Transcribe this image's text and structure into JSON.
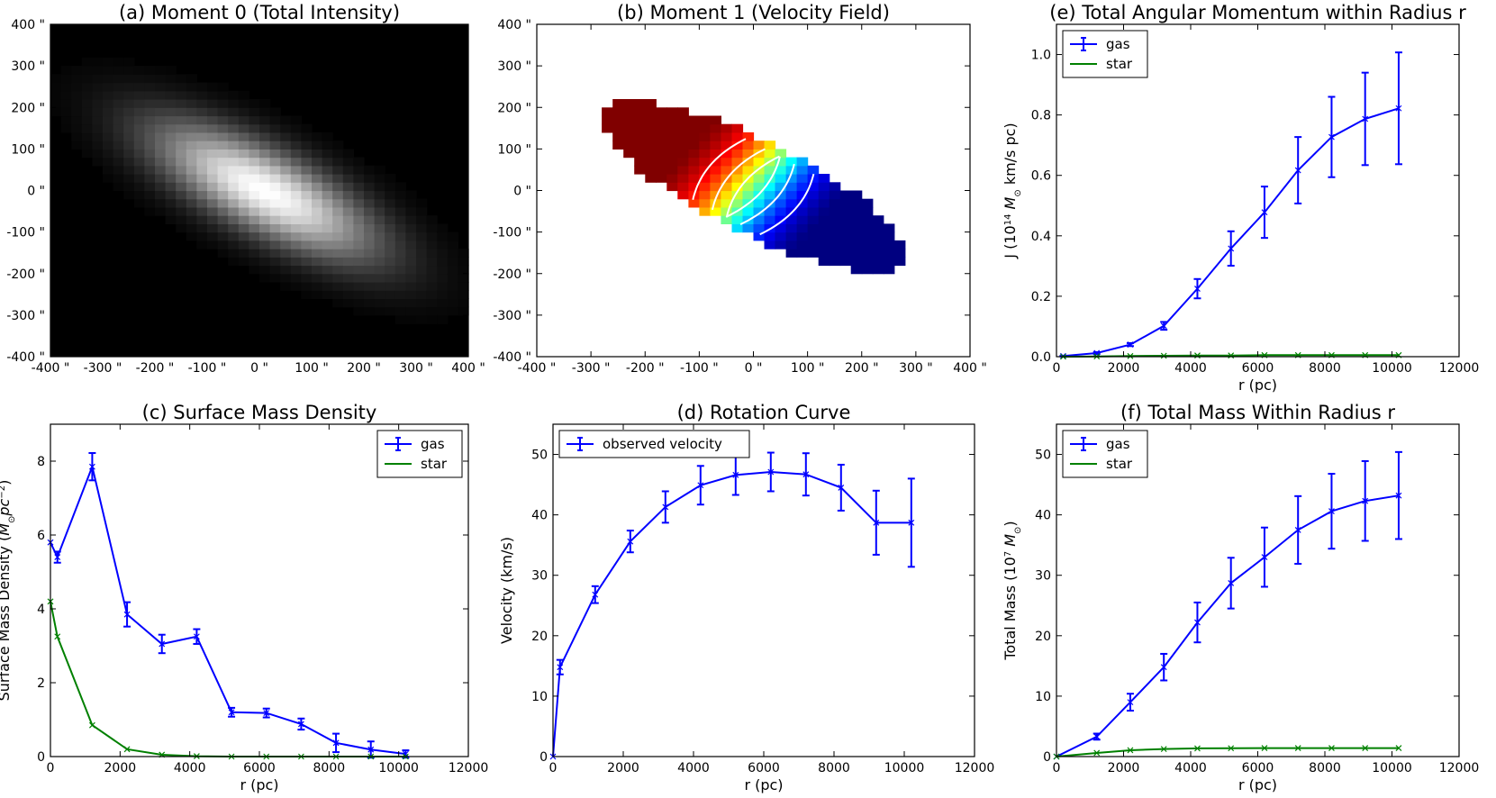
{
  "chart_data": [
    {
      "id": "a",
      "type": "heatmap",
      "title": "(a) Moment 0 (Total Intensity)",
      "xlim": [
        -400,
        400
      ],
      "ylim": [
        -400,
        400
      ],
      "xticks": [
        -400,
        -300,
        -200,
        -100,
        0,
        100,
        200,
        300,
        400
      ],
      "yticks": [
        -400,
        -300,
        -200,
        -100,
        0,
        100,
        200,
        300,
        400
      ],
      "xticklabels": [
        "-400 \"",
        "-300 \"",
        "-200 \"",
        "-100 \"",
        "0 \"",
        "100 \"",
        "200 \"",
        "300 \"",
        "400 \""
      ],
      "yticklabels": [
        "-400 \"",
        "-300 \"",
        "-200 \"",
        "-100 \"",
        "0 \"",
        "100 \"",
        "200 \"",
        "300 \"",
        "400 \""
      ],
      "colormap": "gray",
      "source": {
        "center_x": 10,
        "center_y": 0,
        "position_angle_deg": -35,
        "major_sigma": 150,
        "minor_sigma": 55,
        "peak": 1.0
      },
      "grid_step": 20
    },
    {
      "id": "b",
      "type": "heatmap",
      "title": "(b) Moment 1 (Velocity Field)",
      "xlim": [
        -400,
        400
      ],
      "ylim": [
        -400,
        400
      ],
      "xticks": [
        -400,
        -300,
        -200,
        -100,
        0,
        100,
        200,
        300,
        400
      ],
      "yticks": [
        -400,
        -300,
        -200,
        -100,
        0,
        100,
        200,
        300,
        400
      ],
      "xticklabels": [
        "-400 \"",
        "-300 \"",
        "-200 \"",
        "-100 \"",
        "0 \"",
        "100 \"",
        "200 \"",
        "300 \"",
        "400 \""
      ],
      "yticklabels": [
        "-400 \"",
        "-300 \"",
        "-200 \"",
        "-100 \"",
        "0 \"",
        "100 \"",
        "200 \"",
        "300 \"",
        "400 \""
      ],
      "colormap": "jet",
      "velocity_range": [
        -50,
        50
      ],
      "mask": {
        "center_x": 0,
        "center_y": 10,
        "position_angle_deg": -34,
        "major_radius": 330,
        "minor_radius": 105
      },
      "grid_step": 20,
      "contour_levels": [
        -40,
        -25,
        -10,
        10,
        25,
        40
      ],
      "contour_color": "#ffffff"
    },
    {
      "id": "e",
      "type": "line",
      "title": "(e) Total Angular Momentum within Radius r",
      "xlabel": "r (pc)",
      "ylabel_parts": [
        "J (10",
        "14",
        " M",
        "⊙",
        "  km/s pc)"
      ],
      "xlim": [
        0,
        12000
      ],
      "ylim": [
        0,
        1.1
      ],
      "xticks": [
        0,
        2000,
        4000,
        6000,
        8000,
        10000,
        12000
      ],
      "yticks": [
        0.0,
        0.2,
        0.4,
        0.6,
        0.8,
        1.0
      ],
      "xticklabels": [
        "0",
        "2000",
        "4000",
        "6000",
        "8000",
        "10000",
        "12000"
      ],
      "yticklabels": [
        "0.0",
        "0.2",
        "0.4",
        "0.6",
        "0.8",
        "1.0"
      ],
      "legend": {
        "loc": "upper-left",
        "entries": [
          "gas",
          "star"
        ]
      },
      "series": [
        {
          "name": "gas",
          "color": "#0000ff",
          "x": [
            200,
            1200,
            2200,
            3200,
            4200,
            5200,
            6200,
            7200,
            8200,
            9200,
            10200
          ],
          "y": [
            0.002,
            0.012,
            0.04,
            0.102,
            0.225,
            0.358,
            0.478,
            0.617,
            0.727,
            0.787,
            0.822
          ],
          "yerr": [
            0.001,
            0.003,
            0.005,
            0.013,
            0.032,
            0.057,
            0.085,
            0.11,
            0.133,
            0.153,
            0.185
          ]
        },
        {
          "name": "star",
          "color": "#008000",
          "x": [
            200,
            1200,
            2200,
            3200,
            4200,
            5200,
            6200,
            7200,
            8200,
            9200,
            10200
          ],
          "y": [
            0.0,
            0.001,
            0.002,
            0.003,
            0.004,
            0.004,
            0.005,
            0.005,
            0.005,
            0.005,
            0.005
          ],
          "yerr": []
        }
      ]
    },
    {
      "id": "c",
      "type": "line",
      "title": "(c) Surface Mass Density",
      "xlabel": "r (pc)",
      "ylabel_parts": [
        "Surface Mass Density (",
        "M",
        "⊙",
        "pc",
        "−2",
        ")"
      ],
      "xlim": [
        0,
        12000
      ],
      "ylim": [
        0,
        9
      ],
      "xticks": [
        0,
        2000,
        4000,
        6000,
        8000,
        10000,
        12000
      ],
      "yticks": [
        0,
        2,
        4,
        6,
        8
      ],
      "xticklabels": [
        "0",
        "2000",
        "4000",
        "6000",
        "8000",
        "10000",
        "12000"
      ],
      "yticklabels": [
        "0",
        "2",
        "4",
        "6",
        "8"
      ],
      "legend": {
        "loc": "upper-right",
        "entries": [
          "gas",
          "star"
        ]
      },
      "series": [
        {
          "name": "gas",
          "color": "#0000ff",
          "x": [
            0,
            200,
            1200,
            2200,
            3200,
            4200,
            5200,
            6200,
            7200,
            8200,
            9200,
            10200
          ],
          "y": [
            5.8,
            5.4,
            7.85,
            3.85,
            3.05,
            3.25,
            1.2,
            1.18,
            0.88,
            0.37,
            0.19,
            0.07
          ],
          "yerr": [
            0,
            0.15,
            0.37,
            0.33,
            0.25,
            0.2,
            0.12,
            0.12,
            0.15,
            0.25,
            0.22,
            0.1
          ]
        },
        {
          "name": "star",
          "color": "#008000",
          "x": [
            0,
            200,
            1200,
            2200,
            3200,
            4200,
            5200,
            6200,
            7200,
            8200,
            9200,
            10200
          ],
          "y": [
            4.2,
            3.25,
            0.85,
            0.2,
            0.05,
            0.01,
            0.0,
            0.0,
            0.0,
            0.0,
            0.0,
            0.0
          ],
          "yerr": []
        }
      ]
    },
    {
      "id": "d",
      "type": "line",
      "title": "(d) Rotation Curve",
      "xlabel": "r (pc)",
      "ylabel": "Velocity (km/s)",
      "xlim": [
        0,
        12000
      ],
      "ylim": [
        0,
        55
      ],
      "xticks": [
        0,
        2000,
        4000,
        6000,
        8000,
        10000,
        12000
      ],
      "yticks": [
        0,
        10,
        20,
        30,
        40,
        50
      ],
      "xticklabels": [
        "0",
        "2000",
        "4000",
        "6000",
        "8000",
        "10000",
        "12000"
      ],
      "yticklabels": [
        "0",
        "10",
        "20",
        "30",
        "40",
        "50"
      ],
      "legend": {
        "loc": "upper-left",
        "entries": [
          "observed velocity"
        ]
      },
      "series": [
        {
          "name": "observed velocity",
          "color": "#0000ff",
          "x": [
            0,
            200,
            1200,
            2200,
            3200,
            4200,
            5200,
            6200,
            7200,
            8200,
            9200,
            10200
          ],
          "y": [
            0,
            14.8,
            26.8,
            35.6,
            41.3,
            44.9,
            46.6,
            47.1,
            46.7,
            44.5,
            38.7,
            38.7
          ],
          "yerr": [
            0,
            1.2,
            1.4,
            1.8,
            2.6,
            3.2,
            3.3,
            3.2,
            3.5,
            3.8,
            5.3,
            7.3
          ]
        }
      ]
    },
    {
      "id": "f",
      "type": "line",
      "title": "(f) Total Mass Within Radius r",
      "xlabel": "r (pc)",
      "ylabel_parts": [
        "Total Mass (10",
        "7",
        " M",
        "⊙",
        ")"
      ],
      "xlim": [
        0,
        12000
      ],
      "ylim": [
        0,
        55
      ],
      "xticks": [
        0,
        2000,
        4000,
        6000,
        8000,
        10000,
        12000
      ],
      "yticks": [
        0,
        10,
        20,
        30,
        40,
        50
      ],
      "xticklabels": [
        "0",
        "2000",
        "4000",
        "6000",
        "8000",
        "10000",
        "12000"
      ],
      "yticklabels": [
        "0",
        "10",
        "20",
        "30",
        "40",
        "50"
      ],
      "legend": {
        "loc": "upper-left",
        "entries": [
          "gas",
          "star"
        ]
      },
      "series": [
        {
          "name": "gas",
          "color": "#0000ff",
          "x": [
            0,
            1200,
            2200,
            3200,
            4200,
            5200,
            6200,
            7200,
            8200,
            9200,
            10200
          ],
          "y": [
            0,
            3.3,
            9.0,
            14.8,
            22.2,
            28.7,
            33.0,
            37.5,
            40.6,
            42.3,
            43.2
          ],
          "yerr": [
            0,
            0.5,
            1.4,
            2.2,
            3.3,
            4.2,
            4.9,
            5.6,
            6.2,
            6.6,
            7.2
          ]
        },
        {
          "name": "star",
          "color": "#008000",
          "x": [
            0,
            1200,
            2200,
            3200,
            4200,
            5200,
            6200,
            7200,
            8200,
            9200,
            10200
          ],
          "y": [
            0,
            0.6,
            1.05,
            1.25,
            1.35,
            1.38,
            1.4,
            1.4,
            1.4,
            1.4,
            1.4
          ],
          "yerr": []
        }
      ]
    }
  ]
}
